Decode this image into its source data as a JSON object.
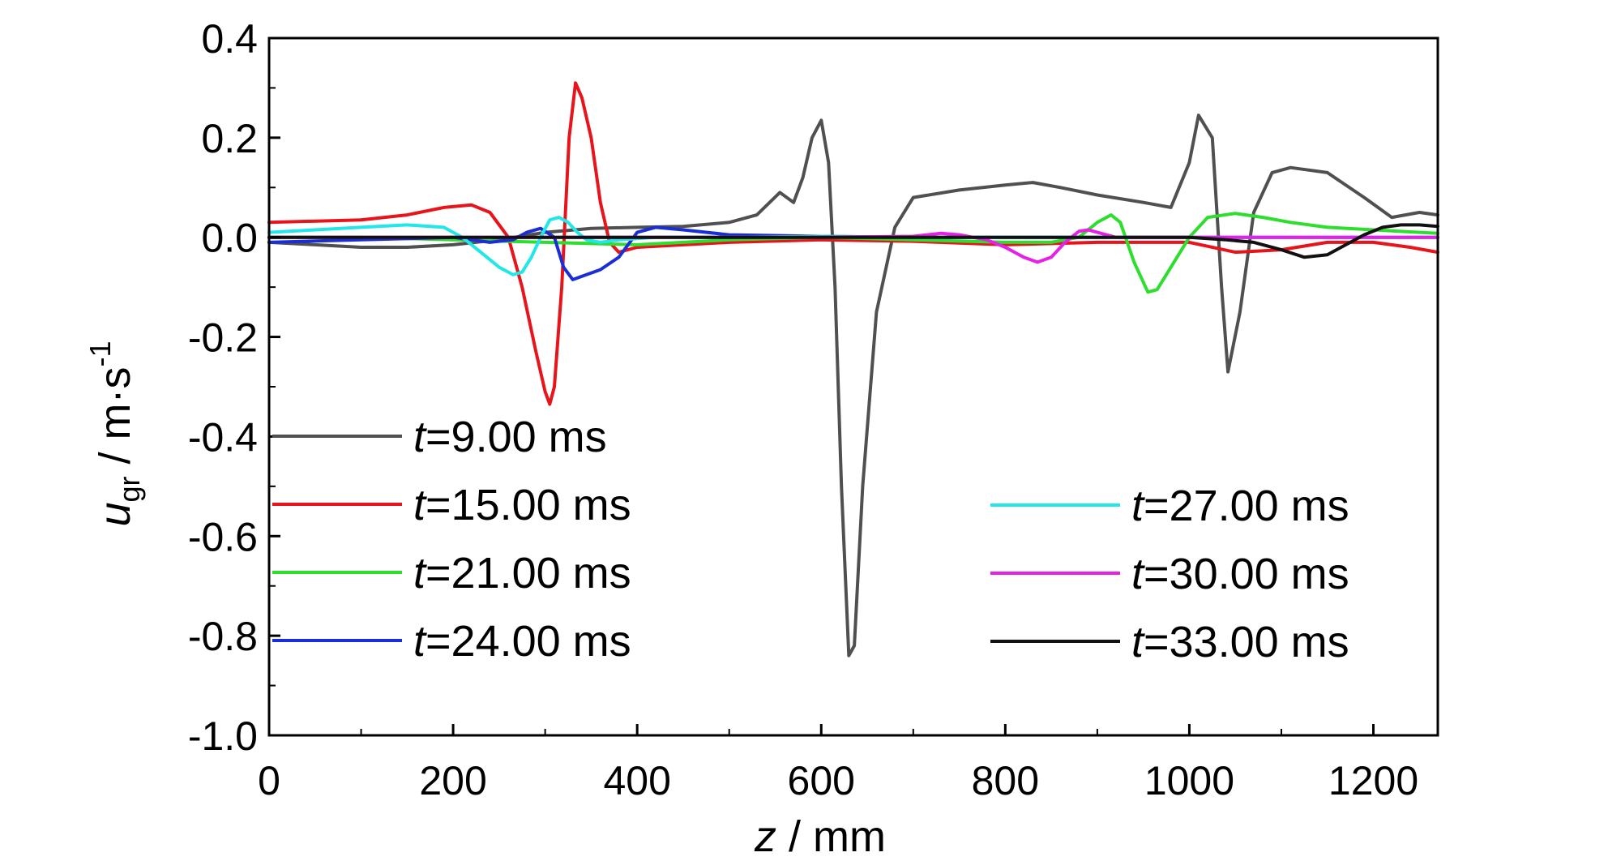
{
  "chart_data": {
    "type": "line",
    "xlabel": {
      "var": "z",
      "rest": " / mm"
    },
    "ylabel": {
      "var": "u",
      "sub": "gr",
      "unit": " / m·s",
      "sup": "-1"
    },
    "xlim": [
      0,
      1270
    ],
    "ylim": [
      -1.0,
      0.4
    ],
    "xticks": [
      0,
      200,
      400,
      600,
      800,
      1000,
      1200
    ],
    "xtick_labels": [
      "0",
      "200",
      "400",
      "600",
      "800",
      "1000",
      "1200"
    ],
    "yticks": [
      0.4,
      0.2,
      0.0,
      -0.2,
      -0.4,
      -0.6,
      -0.8,
      -1.0
    ],
    "ytick_labels": [
      "0.4",
      "0.2",
      "0.0",
      "-0.2",
      "-0.4",
      "-0.6",
      "-0.8",
      "-1.0"
    ],
    "grid": false,
    "legend": [
      {
        "series": 0,
        "var": "t",
        "text": "=9.00 ms",
        "placement": "left"
      },
      {
        "series": 1,
        "var": "t",
        "text": "=15.00 ms",
        "placement": "left"
      },
      {
        "series": 2,
        "var": "t",
        "text": "=21.00 ms",
        "placement": "left"
      },
      {
        "series": 3,
        "var": "t",
        "text": "=24.00 ms",
        "placement": "left"
      },
      {
        "series": 4,
        "var": "t",
        "text": "=27.00 ms",
        "placement": "right"
      },
      {
        "series": 5,
        "var": "t",
        "text": "=30.00 ms",
        "placement": "right"
      },
      {
        "series": 6,
        "var": "t",
        "text": "=33.00 ms",
        "placement": "right"
      }
    ],
    "series": [
      {
        "name": "t=9.00 ms",
        "color": "#505050",
        "x": [
          0,
          50,
          100,
          150,
          200,
          250,
          300,
          350,
          400,
          450,
          500,
          530,
          555,
          570,
          580,
          590,
          600,
          608,
          615,
          622,
          630,
          636,
          645,
          660,
          680,
          700,
          750,
          800,
          830,
          860,
          900,
          950,
          980,
          1000,
          1010,
          1025,
          1035,
          1042,
          1055,
          1070,
          1090,
          1110,
          1150,
          1190,
          1220,
          1250,
          1270
        ],
        "y": [
          -0.01,
          -0.015,
          -0.02,
          -0.02,
          -0.015,
          -0.005,
          0.01,
          0.018,
          0.02,
          0.022,
          0.03,
          0.045,
          0.09,
          0.07,
          0.12,
          0.2,
          0.235,
          0.15,
          -0.1,
          -0.5,
          -0.84,
          -0.82,
          -0.5,
          -0.15,
          0.02,
          0.08,
          0.095,
          0.105,
          0.11,
          0.1,
          0.085,
          0.07,
          0.06,
          0.15,
          0.245,
          0.2,
          -0.1,
          -0.27,
          -0.15,
          0.05,
          0.13,
          0.14,
          0.13,
          0.08,
          0.04,
          0.05,
          0.045
        ]
      },
      {
        "name": "t=15.00 ms",
        "color": "#e8141c",
        "x": [
          0,
          100,
          150,
          190,
          220,
          240,
          260,
          275,
          290,
          300,
          305,
          310,
          318,
          326,
          333,
          340,
          350,
          360,
          370,
          380,
          400,
          500,
          600,
          700,
          800,
          900,
          1000,
          1050,
          1100,
          1150,
          1200,
          1240,
          1270
        ],
        "y": [
          0.03,
          0.035,
          0.045,
          0.06,
          0.065,
          0.05,
          0.0,
          -0.1,
          -0.23,
          -0.31,
          -0.335,
          -0.3,
          -0.1,
          0.2,
          0.31,
          0.28,
          0.2,
          0.07,
          -0.01,
          -0.03,
          -0.02,
          -0.01,
          -0.005,
          -0.008,
          -0.015,
          -0.01,
          -0.01,
          -0.03,
          -0.025,
          -0.01,
          -0.01,
          -0.02,
          -0.03
        ]
      },
      {
        "name": "t=21.00 ms",
        "color": "#2ede2e",
        "x": [
          0,
          100,
          200,
          300,
          400,
          500,
          600,
          700,
          800,
          850,
          880,
          900,
          915,
          925,
          940,
          955,
          965,
          980,
          1000,
          1020,
          1050,
          1080,
          1110,
          1150,
          1200,
          1250,
          1270
        ],
        "y": [
          0.0,
          0.0,
          -0.005,
          -0.01,
          -0.015,
          -0.005,
          0.0,
          -0.005,
          -0.01,
          -0.01,
          0.0,
          0.03,
          0.045,
          0.03,
          -0.05,
          -0.11,
          -0.105,
          -0.06,
          0.0,
          0.04,
          0.048,
          0.04,
          0.03,
          0.02,
          0.015,
          0.01,
          0.008
        ]
      },
      {
        "name": "t=24.00 ms",
        "color": "#1a2ed8",
        "x": [
          0,
          100,
          200,
          240,
          265,
          280,
          295,
          310,
          320,
          330,
          345,
          360,
          380,
          400,
          420,
          450,
          500,
          600,
          700,
          800,
          900,
          1000,
          1100,
          1200,
          1270
        ],
        "y": [
          -0.01,
          -0.005,
          0.0,
          -0.01,
          -0.005,
          0.01,
          0.018,
          0.0,
          -0.06,
          -0.085,
          -0.075,
          -0.065,
          -0.04,
          0.01,
          0.02,
          0.015,
          0.005,
          0.002,
          0.0,
          0.0,
          0.0,
          0.0,
          0.0,
          0.0,
          0.0
        ]
      },
      {
        "name": "t=27.00 ms",
        "color": "#22e6e8",
        "x": [
          0,
          50,
          100,
          150,
          190,
          210,
          230,
          250,
          265,
          275,
          285,
          295,
          305,
          315,
          325,
          335,
          345,
          360,
          380,
          420,
          500,
          600,
          700,
          800,
          900,
          1000,
          1100,
          1200,
          1270
        ],
        "y": [
          0.01,
          0.015,
          0.02,
          0.025,
          0.02,
          0.0,
          -0.03,
          -0.06,
          -0.075,
          -0.07,
          -0.04,
          0.0,
          0.035,
          0.04,
          0.03,
          0.01,
          -0.005,
          -0.01,
          -0.005,
          0.0,
          0.0,
          0.002,
          0.0,
          0.0,
          0.0,
          0.0,
          0.0,
          0.0,
          0.0
        ]
      },
      {
        "name": "t=30.00 ms",
        "color": "#e620e6",
        "x": [
          0,
          200,
          400,
          600,
          700,
          730,
          750,
          780,
          800,
          820,
          835,
          850,
          865,
          880,
          890,
          900,
          920,
          960,
          1000,
          1100,
          1200,
          1270
        ],
        "y": [
          0.0,
          0.0,
          0.0,
          0.0,
          0.002,
          0.008,
          0.005,
          -0.005,
          -0.02,
          -0.04,
          -0.05,
          -0.04,
          -0.01,
          0.012,
          0.015,
          0.01,
          0.0,
          0.0,
          0.0,
          0.0,
          0.0,
          0.0
        ]
      },
      {
        "name": "t=33.00 ms",
        "color": "#111111",
        "x": [
          0,
          200,
          400,
          600,
          800,
          900,
          1000,
          1040,
          1070,
          1100,
          1125,
          1150,
          1170,
          1190,
          1210,
          1230,
          1250,
          1270
        ],
        "y": [
          0.0,
          0.0,
          0.0,
          0.0,
          0.0,
          0.0,
          0.0,
          -0.005,
          -0.01,
          -0.025,
          -0.04,
          -0.035,
          -0.015,
          0.005,
          0.02,
          0.025,
          0.025,
          0.022
        ]
      }
    ]
  }
}
